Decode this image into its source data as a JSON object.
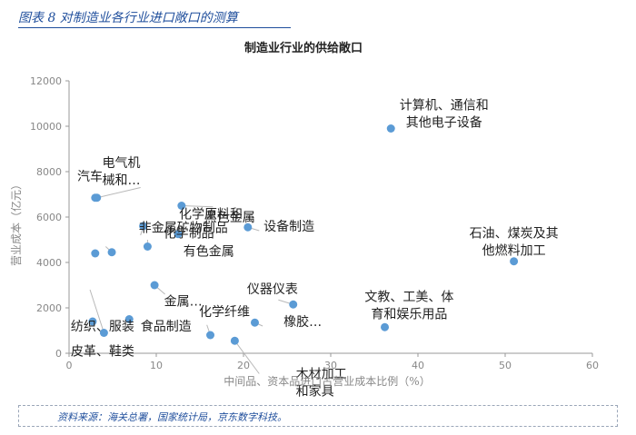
{
  "figure_title": "图表 8 对制造业各行业进口敞口的测算",
  "source": "资料来源：海关总署，国家统计局，京东数字科技。",
  "chart_data": {
    "type": "scatter",
    "title": "制造业行业的供给敞口",
    "xlabel": "中间品、资本品进口占营业成本比例（%）",
    "ylabel": "营业成本（亿元）",
    "xlim": [
      0,
      60
    ],
    "ylim": [
      0,
      12000
    ],
    "x_ticks": [
      "0",
      "10",
      "20",
      "30",
      "40",
      "50",
      "60"
    ],
    "y_ticks": [
      "0",
      "2000",
      "4000",
      "6000",
      "8000",
      "10000",
      "12000"
    ],
    "grid": false,
    "color": "#5b9bd5",
    "points": [
      {
        "x": 36.9,
        "y": 9900,
        "label": "计算机、通信和\n其他电子设备",
        "lx": 43,
        "ly": 10750,
        "leader": false
      },
      {
        "x": 51.0,
        "y": 4050,
        "label": "石油、煤炭及其\n他燃料加工",
        "lx": 51,
        "ly": 5100,
        "leader": false
      },
      {
        "x": 36.2,
        "y": 1150,
        "label": "文教、工美、体\n育和娱乐用品",
        "lx": 39,
        "ly": 2300,
        "leader": false
      },
      {
        "x": 20.5,
        "y": 5550,
        "label": "设备制造",
        "lx": 22.3,
        "ly": 5400,
        "leader": true,
        "lead_to": [
          21.8,
          5400
        ]
      },
      {
        "x": 25.7,
        "y": 2150,
        "label": "仪器仪表",
        "lx": 20.4,
        "ly": 2650,
        "leader": true,
        "lead_to": [
          24,
          2350
        ]
      },
      {
        "x": 21.3,
        "y": 1350,
        "label": "橡胶…",
        "lx": 24.6,
        "ly": 1200,
        "leader": true,
        "lead_to": [
          22.2,
          1200
        ]
      },
      {
        "x": 19.0,
        "y": 550,
        "label": "木材加工\n和家具",
        "lx": 26,
        "ly": -1100,
        "leader": true,
        "lead_to": [
          21.8,
          -900
        ]
      },
      {
        "x": 16.2,
        "y": 800,
        "label": "化学纤维",
        "lx": 14.9,
        "ly": 1650,
        "leader": true,
        "lead_to": [
          15.8,
          1250
        ]
      },
      {
        "x": 9.8,
        "y": 3000,
        "label": "金属…",
        "lx": 10.9,
        "ly": 2100,
        "leader": true,
        "lead_to": [
          11,
          2600
        ]
      },
      {
        "x": 12.9,
        "y": 6500,
        "label": "黑色金属",
        "lx": 15.5,
        "ly": 5800,
        "leader": true,
        "lead_to": [
          16.5,
          6450
        ]
      },
      {
        "x": 12.5,
        "y": 5250,
        "label": "化学制品",
        "lx": 10.8,
        "ly": 5100,
        "leader": true,
        "lead_to": [
          12.2,
          5250
        ]
      },
      {
        "x": 8.5,
        "y": 5600,
        "label": "化学原料和…",
        "lx": 12.6,
        "ly": 5950,
        "leader": true,
        "lead_to": [
          8.2,
          5200
        ]
      },
      {
        "x": 4.9,
        "y": 4450,
        "label": "非金属矿物制品",
        "lx": 8,
        "ly": 5350,
        "leader": true,
        "lead_to": [
          4.2,
          4700
        ]
      },
      {
        "x": 9.0,
        "y": 4700,
        "label": "有色金属",
        "lx": 13.1,
        "ly": 4300,
        "leader": true,
        "lead_to": [
          9,
          5000
        ]
      },
      {
        "x": 3.2,
        "y": 6850,
        "label": "电气机\n械和…",
        "lx": 3.8,
        "ly": 8200,
        "leader": true,
        "lead_to": [
          8.2,
          7300
        ]
      },
      {
        "x": 3.0,
        "y": 6850,
        "label": "汽车",
        "lx": 2.4,
        "ly": 7600,
        "leader": false
      },
      {
        "x": 3.0,
        "y": 4400,
        "label": "",
        "lx": 0,
        "ly": 0,
        "leader": false
      },
      {
        "x": 6.9,
        "y": 1500,
        "label": "食品制造",
        "lx": 8.2,
        "ly": 1000,
        "leader": true,
        "lead_to": [
          7.2,
          1300
        ]
      },
      {
        "x": 2.7,
        "y": 1400,
        "label": "纺织、服装",
        "lx": 0.2,
        "ly": 1000,
        "leader": true,
        "lead_to": [
          2.2,
          1000
        ]
      },
      {
        "x": 4.0,
        "y": 900,
        "label": "皮革、鞋类",
        "lx": 0.2,
        "ly": -100,
        "leader": true,
        "lead_to": [
          2.4,
          2800
        ]
      }
    ]
  }
}
